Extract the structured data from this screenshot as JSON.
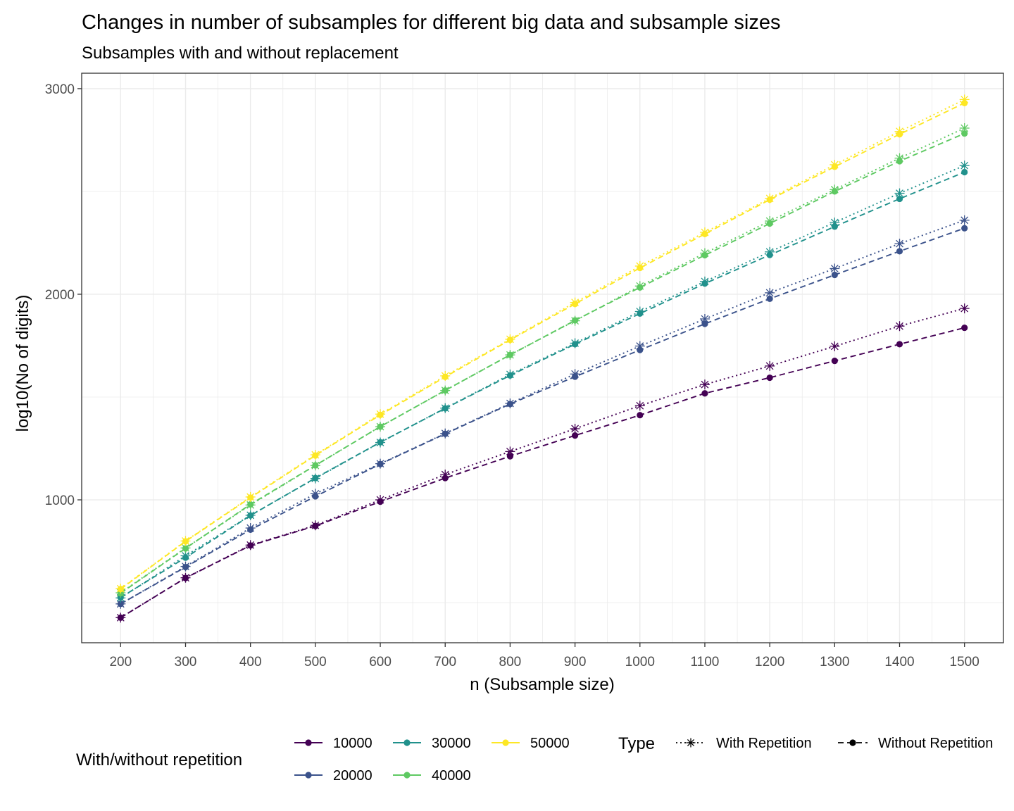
{
  "chart_data": {
    "type": "line",
    "title": "Changes in number of subsamples for different big data and subsample sizes",
    "subtitle": "Subsamples with and without replacement",
    "xlabel": "n (Subsample size)",
    "ylabel": "log10(No of digits)",
    "x_ticks": [
      200,
      300,
      400,
      500,
      600,
      700,
      800,
      900,
      1000,
      1100,
      1200,
      1300,
      1400,
      1500
    ],
    "y_ticks": [
      1000,
      2000,
      3000
    ],
    "xlim": [
      140,
      1560
    ],
    "ylim": [
      305,
      3075
    ],
    "grid": true,
    "x": [
      200,
      300,
      400,
      500,
      600,
      700,
      800,
      900,
      1000,
      1100,
      1200,
      1300,
      1400,
      1500
    ],
    "series": [
      {
        "name": "10000",
        "color": "#440154",
        "type": "Without Repetition",
        "values": [
          427,
          620,
          778,
          873,
          991,
          1106,
          1212,
          1313,
          1412,
          1518,
          1594,
          1676,
          1757,
          1837
        ]
      },
      {
        "name": "10000",
        "color": "#440154",
        "type": "With Repetition",
        "values": [
          427,
          621,
          780,
          876,
          1000,
          1123,
          1235,
          1346,
          1458,
          1561,
          1651,
          1747,
          1845,
          1931
        ]
      },
      {
        "name": "20000",
        "color": "#3b528b",
        "type": "Without Repetition",
        "values": [
          494,
          673,
          855,
          1017,
          1174,
          1321,
          1466,
          1599,
          1729,
          1856,
          1978,
          2094,
          2209,
          2321
        ]
      },
      {
        "name": "20000",
        "color": "#3b528b",
        "type": "With Repetition",
        "values": [
          494,
          676,
          863,
          1030,
          1176,
          1323,
          1469,
          1612,
          1748,
          1880,
          2007,
          2125,
          2246,
          2360
        ]
      },
      {
        "name": "30000",
        "color": "#21918c",
        "type": "Without Repetition",
        "values": [
          525,
          719,
          924,
          1106,
          1280,
          1445,
          1605,
          1757,
          1906,
          2052,
          2191,
          2329,
          2464,
          2594
        ]
      },
      {
        "name": "30000",
        "color": "#21918c",
        "type": "With Repetition",
        "values": [
          523,
          728,
          925,
          1104,
          1279,
          1446,
          1610,
          1762,
          1916,
          2062,
          2206,
          2349,
          2491,
          2626
        ]
      },
      {
        "name": "40000",
        "color": "#5ec962",
        "type": "Without Repetition",
        "values": [
          546,
          764,
          978,
          1168,
          1356,
          1532,
          1705,
          1873,
          2033,
          2190,
          2344,
          2500,
          2647,
          2782
        ]
      },
      {
        "name": "40000",
        "color": "#5ec962",
        "type": "With Repetition",
        "values": [
          548,
          766,
          975,
          1167,
          1356,
          1532,
          1705,
          1871,
          2040,
          2200,
          2356,
          2509,
          2662,
          2808
        ]
      },
      {
        "name": "50000",
        "color": "#fde725",
        "type": "Without Repetition",
        "values": [
          566,
          798,
          1011,
          1216,
          1413,
          1598,
          1778,
          1953,
          2128,
          2293,
          2460,
          2620,
          2778,
          2930
        ]
      },
      {
        "name": "50000",
        "color": "#fde725",
        "type": "With Repetition",
        "values": [
          568,
          800,
          1014,
          1219,
          1417,
          1603,
          1781,
          1960,
          2137,
          2301,
          2466,
          2630,
          2792,
          2947
        ]
      }
    ],
    "legend": {
      "position": "bottom",
      "color_title": "With/without repetition",
      "color_items": [
        {
          "label": "10000",
          "color": "#440154"
        },
        {
          "label": "20000",
          "color": "#3b528b"
        },
        {
          "label": "30000",
          "color": "#21918c"
        },
        {
          "label": "40000",
          "color": "#5ec962"
        },
        {
          "label": "50000",
          "color": "#fde725"
        }
      ],
      "type_title": "Type",
      "type_items": [
        {
          "label": "With Repetition",
          "marker": "asterisk",
          "line": "dotted"
        },
        {
          "label": "Without Repetition",
          "marker": "circle",
          "line": "dashed"
        }
      ]
    }
  }
}
